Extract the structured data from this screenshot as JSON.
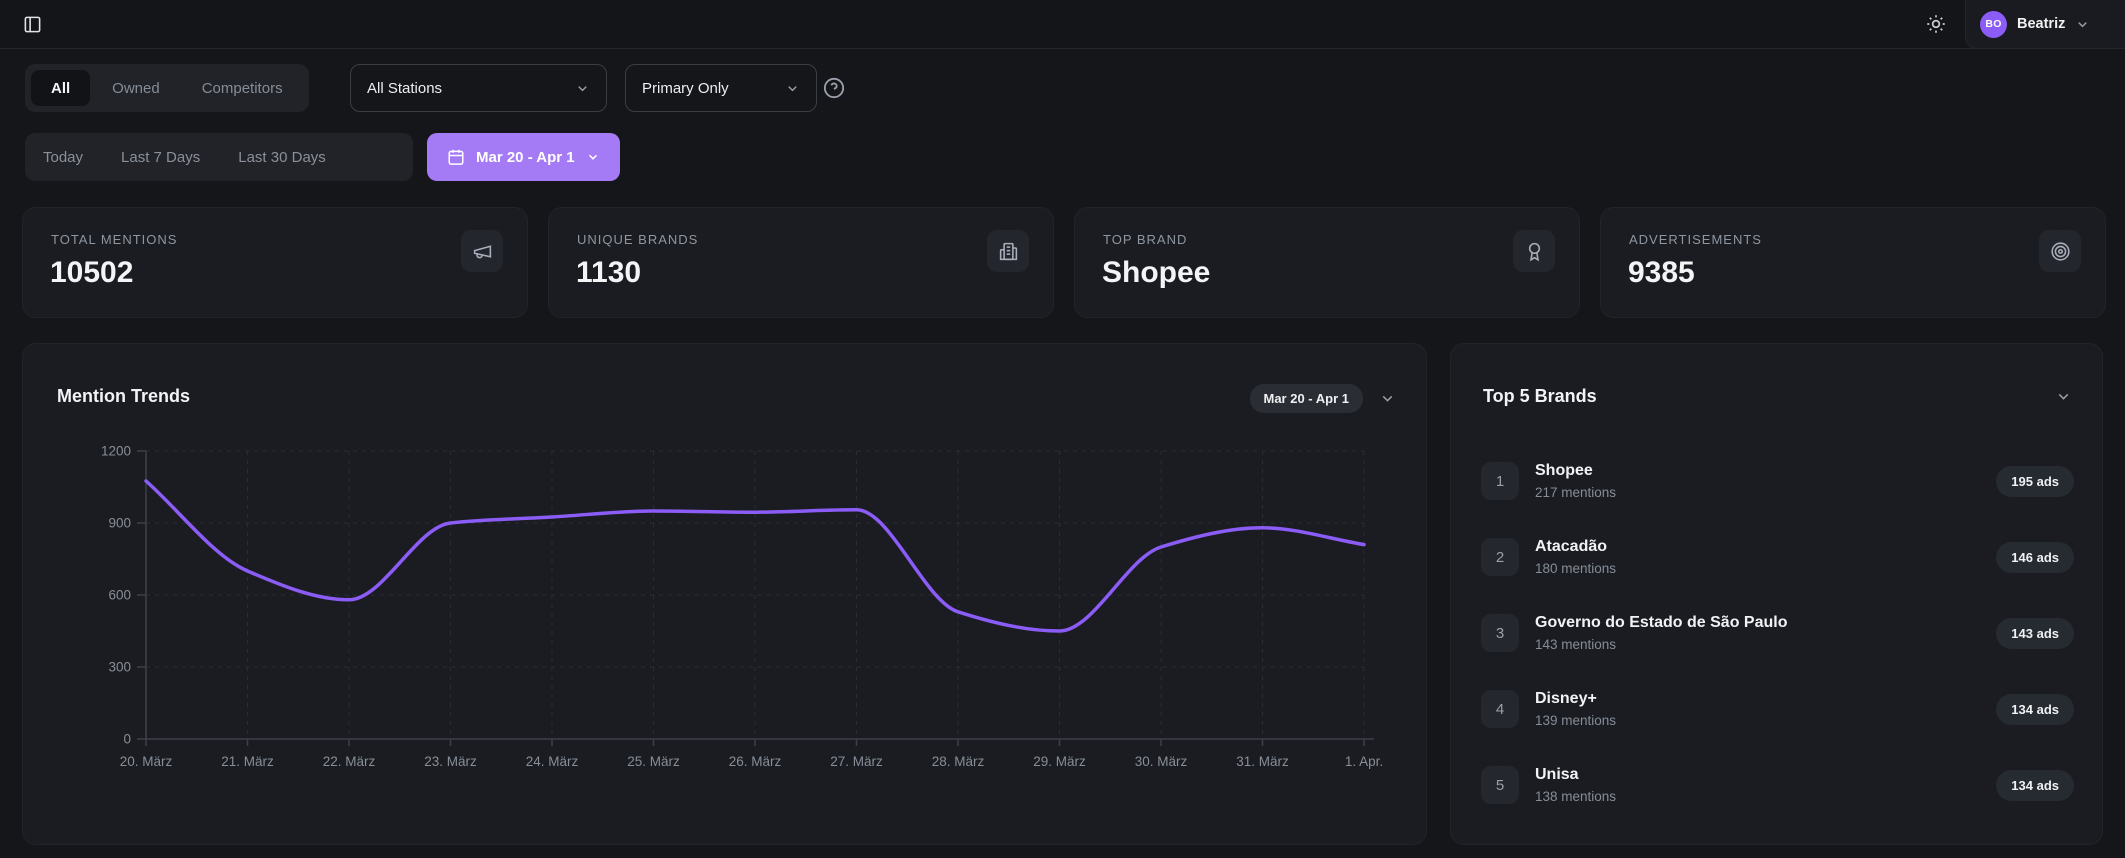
{
  "header": {
    "user_initials": "BO",
    "user_name": "Beatriz"
  },
  "filters": {
    "scope_tabs": [
      {
        "label": "All",
        "active": true
      },
      {
        "label": "Owned",
        "active": false
      },
      {
        "label": "Competitors",
        "active": false
      }
    ],
    "stations_dropdown_value": "All Stations",
    "primary_dropdown_value": "Primary Only",
    "date_presets": [
      {
        "label": "Today"
      },
      {
        "label": "Last 7 Days"
      },
      {
        "label": "Last 30 Days"
      }
    ],
    "date_range_button_label": "Mar 20 - Apr 1"
  },
  "stats": [
    {
      "label": "TOTAL MENTIONS",
      "value": "10502",
      "icon": "megaphone-icon"
    },
    {
      "label": "UNIQUE BRANDS",
      "value": "1130",
      "icon": "building-icon"
    },
    {
      "label": "TOP BRAND",
      "value": "Shopee",
      "icon": "award-icon"
    },
    {
      "label": "ADVERTISEMENTS",
      "value": "9385",
      "icon": "target-icon"
    }
  ],
  "mention_trends": {
    "title": "Mention Trends",
    "range_label": "Mar 20 - Apr 1"
  },
  "chart_data": {
    "type": "line",
    "title": "Mention Trends",
    "x": [
      "20. März",
      "21. März",
      "22. März",
      "23. März",
      "24. März",
      "25. März",
      "26. März",
      "27. März",
      "28. März",
      "29. März",
      "30. März",
      "31. März",
      "1. Apr."
    ],
    "series": [
      {
        "name": "Mentions",
        "values": [
          1075,
          700,
          580,
          900,
          925,
          950,
          945,
          955,
          530,
          450,
          800,
          880,
          810
        ]
      }
    ],
    "ylim": [
      0,
      1200
    ],
    "yticks": [
      0,
      300,
      600,
      900,
      1200
    ],
    "line_color": "#8b5cf6",
    "grid": "dashed",
    "legend": "none"
  },
  "top_brands": {
    "title": "Top 5 Brands",
    "items": [
      {
        "rank": "1",
        "name": "Shopee",
        "mentions": "217 mentions",
        "ads": "195 ads"
      },
      {
        "rank": "2",
        "name": "Atacadão",
        "mentions": "180 mentions",
        "ads": "146 ads"
      },
      {
        "rank": "3",
        "name": "Governo do Estado de São Paulo",
        "mentions": "143 mentions",
        "ads": "143 ads"
      },
      {
        "rank": "4",
        "name": "Disney+",
        "mentions": "139 mentions",
        "ads": "134 ads"
      },
      {
        "rank": "5",
        "name": "Unisa",
        "mentions": "138 mentions",
        "ads": "134 ads"
      }
    ]
  },
  "colors": {
    "accent_purple": "#a57bf5",
    "chart_line": "#8b5cf6",
    "page_bg": "#15161a",
    "card_bg": "#1a1c22"
  }
}
